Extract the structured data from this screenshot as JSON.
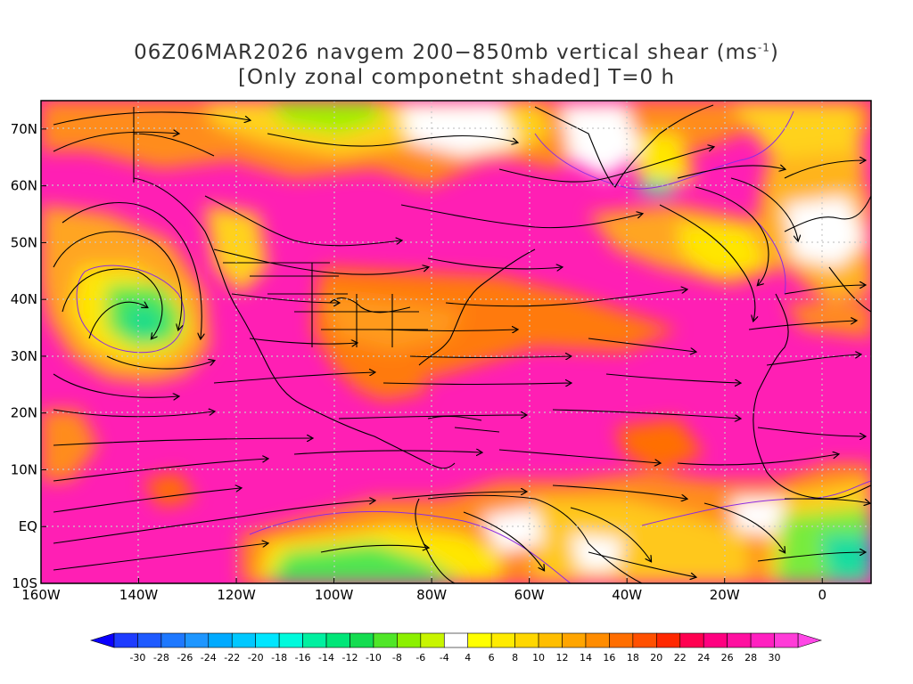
{
  "title": {
    "line1_prefix": "06Z06MAR2026 navgem 200−850mb vertical shear (ms",
    "line1_sup": "-1",
    "line1_suffix": ")",
    "line2": "[Only zonal componetnt shaded] T=0 h"
  },
  "map": {
    "projection": "lat-lon",
    "lon_range": [
      -160,
      10
    ],
    "lat_range": [
      -10,
      75
    ],
    "lon_ticks": [
      "160W",
      "140W",
      "120W",
      "100W",
      "80W",
      "60W",
      "40W",
      "20W",
      "0"
    ],
    "lat_ticks": [
      "10S",
      "EQ",
      "10N",
      "20N",
      "30N",
      "40N",
      "50N",
      "60N",
      "70N"
    ],
    "gridlines": "dotted",
    "shaded_field": "zonal component of 200-850mb vertical shear",
    "vectors": "streamlines of vertical shear",
    "contour_color": "#8b2be2",
    "coastline_color": "#000000"
  },
  "colorbar": {
    "labels": [
      "-30",
      "-28",
      "-26",
      "-24",
      "-22",
      "-20",
      "-18",
      "-16",
      "-14",
      "-12",
      "-10",
      "-8",
      "-6",
      "-4",
      "4",
      "6",
      "8",
      "10",
      "12",
      "14",
      "16",
      "18",
      "20",
      "22",
      "24",
      "26",
      "28",
      "30"
    ],
    "colors": [
      "#1e3cff",
      "#1e5aff",
      "#1e78ff",
      "#1e96ff",
      "#00aaff",
      "#00c8ff",
      "#00e6ff",
      "#00fadc",
      "#00f0a0",
      "#00e678",
      "#14dc50",
      "#50e628",
      "#8cf000",
      "#c8f500",
      "#ffffff",
      "#ffff00",
      "#ffeb00",
      "#ffd700",
      "#ffbe00",
      "#ffa500",
      "#ff8c00",
      "#ff6e00",
      "#ff5000",
      "#ff2800",
      "#ff0050",
      "#ff0080",
      "#ff10a0",
      "#ff20c0",
      "#ff3cd8"
    ],
    "end_left_color": "#0a00ff",
    "end_right_color": "#ff46e6"
  }
}
